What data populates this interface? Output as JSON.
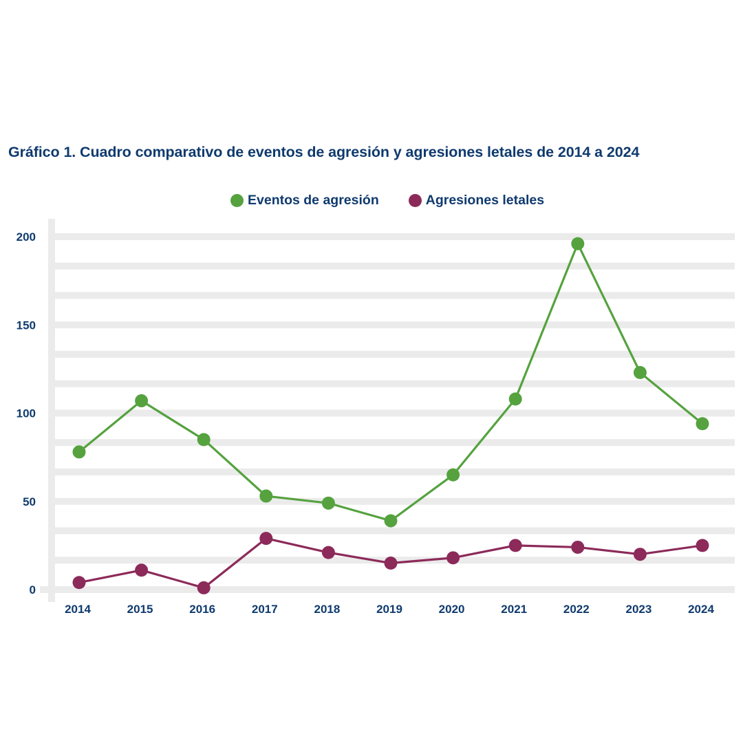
{
  "chart_data": {
    "type": "line",
    "title": "Gráfico 1. Cuadro comparativo de eventos de agresión y agresiones letales de 2014 a 2024",
    "xlabel": "",
    "ylabel": "",
    "categories": [
      "2014",
      "2015",
      "2016",
      "2017",
      "2018",
      "2019",
      "2020",
      "2021",
      "2022",
      "2023",
      "2024"
    ],
    "ylim": [
      0,
      200
    ],
    "yticks": [
      0,
      50,
      100,
      150,
      200
    ],
    "yticklabels": [
      "0",
      "50",
      "100",
      "150",
      "200"
    ],
    "minor_grid_step": 16.67,
    "grid": true,
    "legend_position": "top-center",
    "series": [
      {
        "name": "Eventos de agresión",
        "color": "#55a23f",
        "values": [
          78,
          107,
          85,
          53,
          49,
          39,
          65,
          108,
          196,
          123,
          94
        ]
      },
      {
        "name": "Agresiones letales",
        "color": "#8c2a5a",
        "values": [
          4,
          11,
          1,
          29,
          21,
          15,
          18,
          25,
          24,
          20,
          25
        ]
      }
    ]
  },
  "colors": {
    "text": "#0f3a6e",
    "grid": "#ebebeb"
  }
}
